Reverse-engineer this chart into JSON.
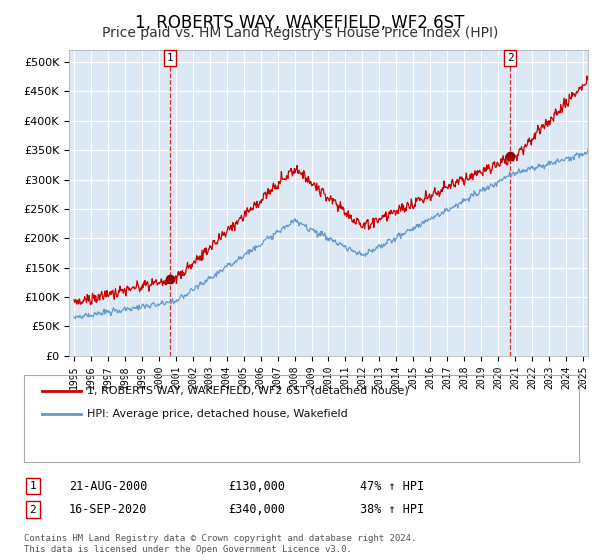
{
  "title": "1, ROBERTS WAY, WAKEFIELD, WF2 6ST",
  "subtitle": "Price paid vs. HM Land Registry's House Price Index (HPI)",
  "title_fontsize": 12,
  "subtitle_fontsize": 10,
  "ylabel_ticks": [
    "£0",
    "£50K",
    "£100K",
    "£150K",
    "£200K",
    "£250K",
    "£300K",
    "£350K",
    "£400K",
    "£450K",
    "£500K"
  ],
  "ytick_values": [
    0,
    50000,
    100000,
    150000,
    200000,
    250000,
    300000,
    350000,
    400000,
    450000,
    500000
  ],
  "xlim_start": 1994.7,
  "xlim_end": 2025.3,
  "ylim": [
    0,
    520000
  ],
  "background_color": "#ffffff",
  "plot_bg_color": "#dce9f5",
  "grid_color": "#ffffff",
  "sale1": {
    "date": 2000.64,
    "price": 130000,
    "label": "1",
    "pct": "47%",
    "date_str": "21-AUG-2000"
  },
  "sale2": {
    "date": 2020.71,
    "price": 340000,
    "label": "2",
    "pct": "38%",
    "date_str": "16-SEP-2020"
  },
  "legend_line1": "1, ROBERTS WAY, WAKEFIELD, WF2 6ST (detached house)",
  "legend_line2": "HPI: Average price, detached house, Wakefield",
  "footer1": "Contains HM Land Registry data © Crown copyright and database right 2024.",
  "footer2": "This data is licensed under the Open Government Licence v3.0.",
  "red_color": "#cc0000",
  "blue_color": "#6699cc",
  "marker_color": "#990000"
}
